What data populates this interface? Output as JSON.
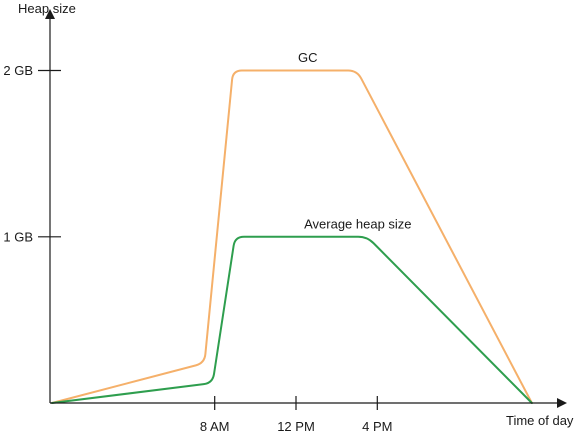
{
  "chart_data": {
    "type": "line",
    "title": "",
    "xlabel": "Time of day",
    "ylabel": "Heap size",
    "x_ticks": [
      {
        "label": "8 AM",
        "value": 8
      },
      {
        "label": "12 PM",
        "value": 12
      },
      {
        "label": "4 PM",
        "value": 16
      }
    ],
    "y_ticks": [
      {
        "label": "1 GB",
        "value": 1
      },
      {
        "label": "2 GB",
        "value": 2
      }
    ],
    "xlim": [
      0,
      24
    ],
    "ylim": [
      0,
      2.4
    ],
    "grid": false,
    "legend": "none",
    "series": [
      {
        "name": "GC",
        "color": "#f5b06a",
        "points": [
          {
            "x": 0,
            "y": 0
          },
          {
            "x": 7.5,
            "y": 0.24
          },
          {
            "x": 8.9,
            "y": 2.0
          },
          {
            "x": 15,
            "y": 2.0
          },
          {
            "x": 23.6,
            "y": 0
          }
        ],
        "label_at": {
          "x": 12.1,
          "y": 2.05
        }
      },
      {
        "name": "Average heap size",
        "color": "#2e9e4e",
        "points": [
          {
            "x": 0,
            "y": 0
          },
          {
            "x": 7.9,
            "y": 0.12
          },
          {
            "x": 9.0,
            "y": 1.0
          },
          {
            "x": 15.5,
            "y": 1.0
          },
          {
            "x": 23.6,
            "y": 0
          }
        ],
        "label_at": {
          "x": 12.4,
          "y": 1.05
        }
      }
    ]
  }
}
